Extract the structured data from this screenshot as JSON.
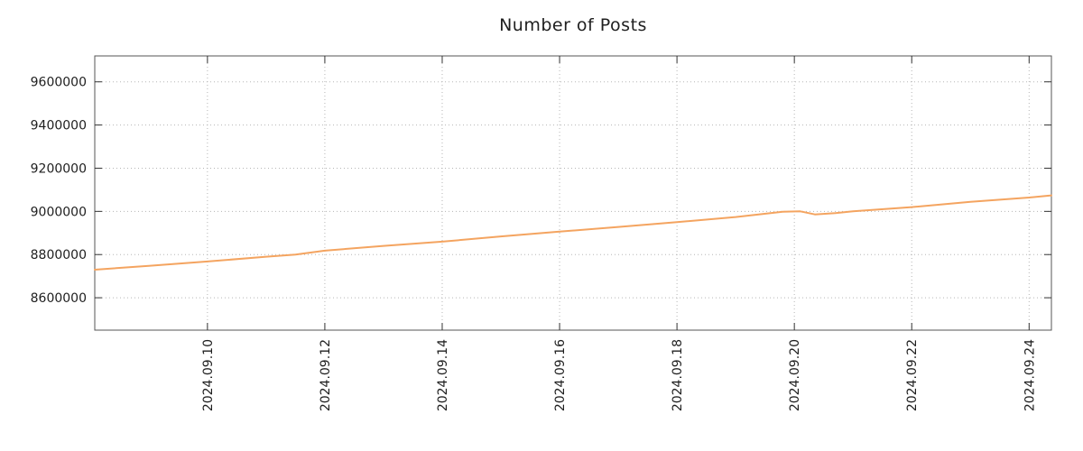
{
  "chart": {
    "line_color": "#f4a460",
    "grid_color": "#b5b5b5",
    "border_color": "#555555",
    "tick_color": "#333333",
    "text_color": "#1f1f1f",
    "background": "#ffffff"
  },
  "chart_data": {
    "type": "line",
    "title": "Number of Posts",
    "xlabel": "",
    "ylabel": "",
    "grid": true,
    "legend": false,
    "xlim": [
      8.08,
      24.38
    ],
    "ylim": [
      8450000,
      9720000
    ],
    "y_ticks": [
      8600000,
      8800000,
      9000000,
      9200000,
      9400000,
      9600000
    ],
    "x_tick_values": [
      10,
      12,
      14,
      16,
      18,
      20,
      22,
      24
    ],
    "x_tick_labels": [
      "2024.09.10",
      "2024.09.12",
      "2024.09.14",
      "2024.09.16",
      "2024.09.18",
      "2024.09.20",
      "2024.09.22",
      "2024.09.24"
    ],
    "series": [
      {
        "name": "number-of-posts",
        "x": [
          8.08,
          9,
          10,
          11,
          11.5,
          12,
          13,
          14,
          15,
          16,
          17,
          18,
          19,
          19.8,
          20.1,
          20.35,
          20.7,
          21,
          22,
          23,
          24,
          24.38
        ],
        "y": [
          8730000,
          8748000,
          8768000,
          8790000,
          8800000,
          8818000,
          8840000,
          8860000,
          8884000,
          8906000,
          8928000,
          8950000,
          8974000,
          8998000,
          9000000,
          8986000,
          8992000,
          9000000,
          9020000,
          9044000,
          9064000,
          9074000
        ]
      }
    ]
  }
}
